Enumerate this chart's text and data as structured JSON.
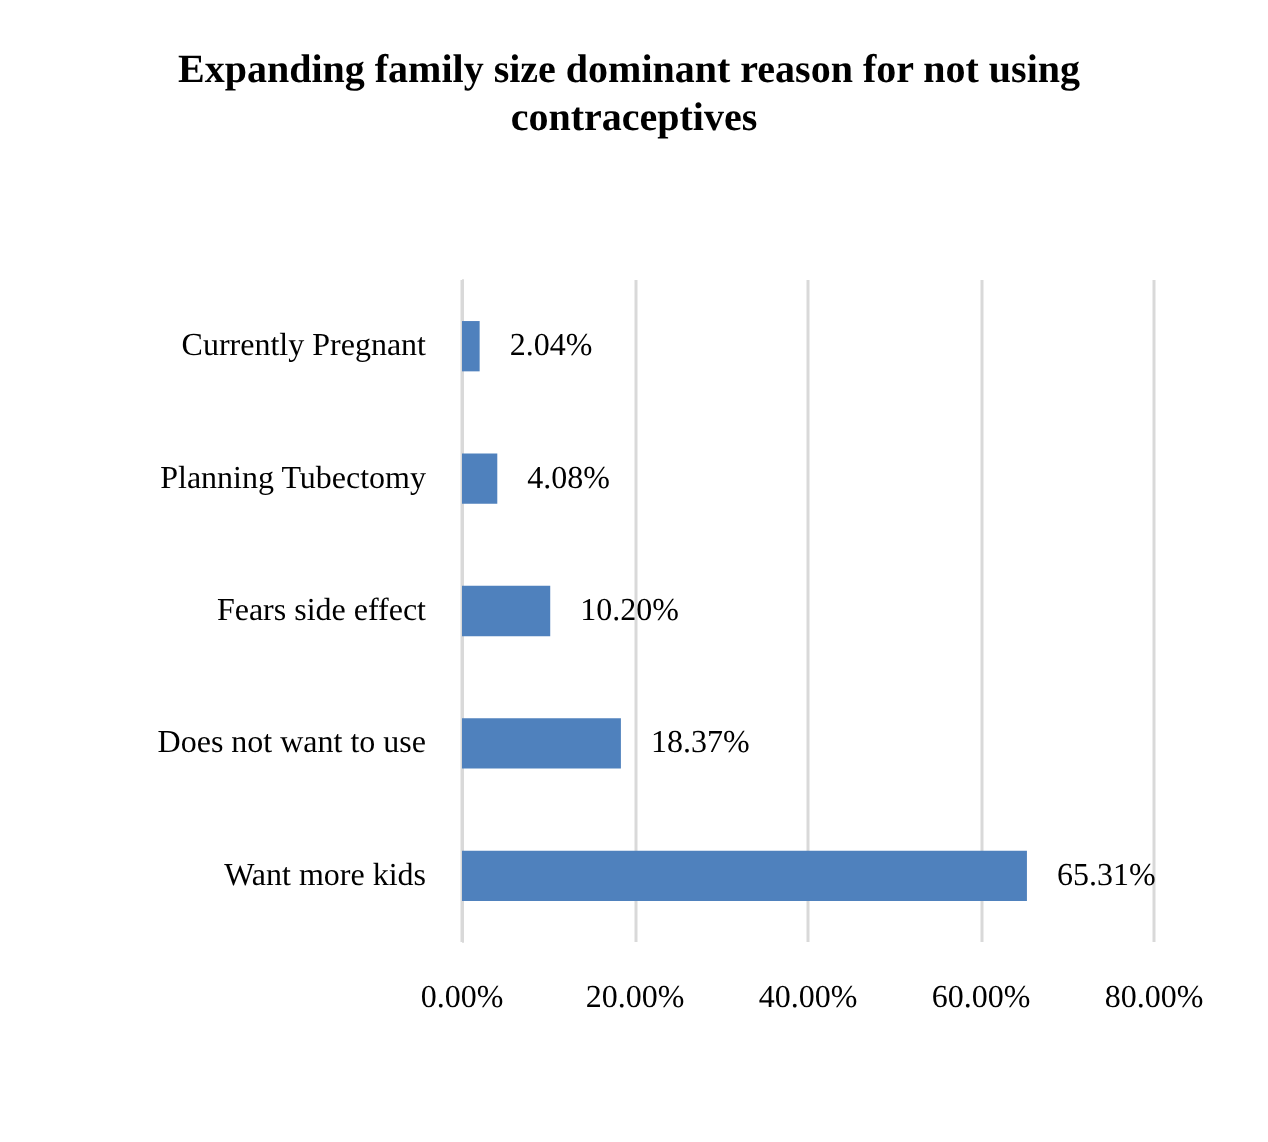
{
  "chart_data": {
    "type": "bar",
    "orientation": "horizontal",
    "title": "Expanding family size dominant reason for not using contraceptives",
    "categories": [
      "Currently Pregnant",
      "Planning Tubectomy",
      "Fears side effect",
      "Does not want to use",
      "Want more kids"
    ],
    "values": [
      2.04,
      4.08,
      10.2,
      18.37,
      65.31
    ],
    "value_labels": [
      "2.04%",
      "4.08%",
      "10.20%",
      "18.37%",
      "65.31%"
    ],
    "color": "#4f81bd",
    "xlim": [
      0,
      80
    ],
    "xticks": [
      {
        "value": 0,
        "label": "0.00%"
      },
      {
        "value": 20,
        "label": "20.00%"
      },
      {
        "value": 40,
        "label": "40.00%"
      },
      {
        "value": 60,
        "label": "60.00%"
      },
      {
        "value": 80,
        "label": "80.00%"
      }
    ],
    "grid": "x"
  }
}
